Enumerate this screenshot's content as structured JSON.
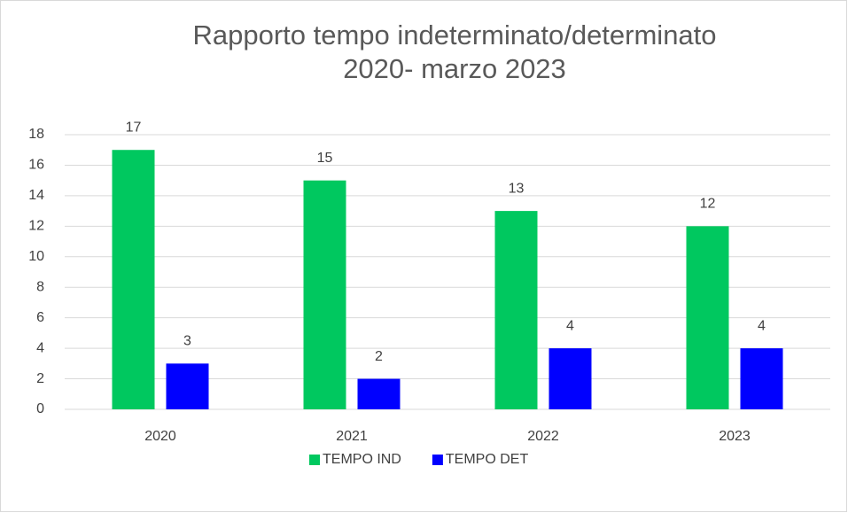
{
  "chart_data": {
    "type": "bar",
    "title": [
      "Rapporto tempo indeterminato/determinato",
      "2020- marzo 2023"
    ],
    "categories": [
      "2020",
      "2021",
      "2022",
      "2023"
    ],
    "series": [
      {
        "name": "TEMPO IND",
        "color": "#00c85f",
        "values": [
          17,
          15,
          13,
          12
        ]
      },
      {
        "name": "TEMPO DET",
        "color": "#0000ff",
        "values": [
          3,
          2,
          4,
          4
        ]
      }
    ],
    "ylim": [
      0,
      18
    ],
    "yticks": [
      0,
      2,
      4,
      6,
      8,
      10,
      12,
      14,
      16,
      18
    ],
    "grid": true,
    "legend": "bottom",
    "data_labels": true
  }
}
